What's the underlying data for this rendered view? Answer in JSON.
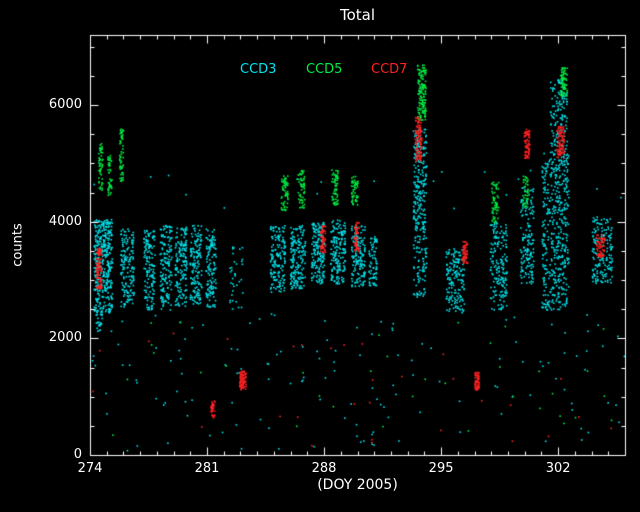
{
  "window": {
    "background": "#000000"
  },
  "chart_data": {
    "type": "scatter",
    "title": "Total",
    "xlabel": "(DOY 2005)",
    "ylabel": "counts",
    "xlim": [
      274,
      306
    ],
    "ylim": [
      0,
      7200
    ],
    "grid": false,
    "legend_position": "top-inside",
    "axis_color": "#ffffff",
    "background": "#000000",
    "xticks": {
      "major": [
        274,
        281,
        288,
        295,
        302
      ],
      "labels": [
        "274",
        "281",
        "288",
        "295",
        "302"
      ],
      "minor_interval": 1
    },
    "yticks": {
      "major": [
        0,
        2000,
        4000,
        6000
      ],
      "labels": [
        "0",
        "2000",
        "4000",
        "6000"
      ],
      "minor_interval": 500
    },
    "cluster_format": "each cluster is [x_center_day, x_half_spread, y_min_counts, y_max_counts, n_points]",
    "series": [
      {
        "name": "CCD3",
        "color": "#00e5ee",
        "clusters": [
          [
            274.75,
            0.55,
            2450,
            4050,
            380
          ],
          [
            274.5,
            0.2,
            2100,
            2500,
            25
          ],
          [
            276.2,
            0.4,
            2550,
            3900,
            150
          ],
          [
            277.5,
            0.35,
            2500,
            3900,
            140
          ],
          [
            278.5,
            0.35,
            2500,
            3950,
            150
          ],
          [
            279.4,
            0.35,
            2550,
            3950,
            150
          ],
          [
            280.3,
            0.35,
            2600,
            3950,
            150
          ],
          [
            281.2,
            0.3,
            2550,
            3900,
            130
          ],
          [
            282.7,
            0.4,
            2500,
            3600,
            35
          ],
          [
            285.2,
            0.45,
            2800,
            3950,
            160
          ],
          [
            286.4,
            0.45,
            2850,
            3950,
            170
          ],
          [
            287.6,
            0.4,
            2950,
            4000,
            160
          ],
          [
            288.8,
            0.45,
            2950,
            4050,
            170
          ],
          [
            290.0,
            0.4,
            2900,
            3950,
            150
          ],
          [
            290.9,
            0.25,
            2900,
            3800,
            70
          ],
          [
            293.7,
            0.4,
            3900,
            5600,
            200
          ],
          [
            293.7,
            0.4,
            2700,
            3900,
            90
          ],
          [
            295.8,
            0.55,
            2450,
            3550,
            160
          ],
          [
            298.4,
            0.5,
            2500,
            4000,
            170
          ],
          [
            300.1,
            0.4,
            2950,
            4600,
            150
          ],
          [
            301.8,
            0.8,
            2500,
            5200,
            450
          ],
          [
            302.0,
            0.5,
            5200,
            6450,
            130
          ],
          [
            304.6,
            0.6,
            2950,
            4100,
            160
          ],
          [
            290.0,
            16.0,
            80,
            2450,
            140
          ],
          [
            290.0,
            16.0,
            4100,
            4900,
            20
          ]
        ]
      },
      {
        "name": "CCD5",
        "color": "#00ee44",
        "clusters": [
          [
            274.6,
            0.12,
            4550,
            5350,
            55
          ],
          [
            275.15,
            0.12,
            4450,
            5150,
            45
          ],
          [
            275.85,
            0.12,
            4700,
            5600,
            55
          ],
          [
            285.6,
            0.2,
            4200,
            4800,
            60
          ],
          [
            286.6,
            0.2,
            4250,
            4900,
            60
          ],
          [
            288.6,
            0.2,
            4300,
            4900,
            60
          ],
          [
            289.8,
            0.2,
            4300,
            4800,
            55
          ],
          [
            293.8,
            0.25,
            5750,
            6700,
            150
          ],
          [
            298.2,
            0.2,
            4000,
            4700,
            65
          ],
          [
            300.0,
            0.15,
            4200,
            4800,
            40
          ],
          [
            302.3,
            0.2,
            6150,
            6650,
            75
          ],
          [
            290.0,
            16.0,
            300,
            2300,
            35
          ]
        ]
      },
      {
        "name": "CCD7",
        "color": "#ff2222",
        "clusters": [
          [
            274.5,
            0.16,
            2850,
            3550,
            100
          ],
          [
            281.3,
            0.12,
            650,
            950,
            35
          ],
          [
            283.1,
            0.2,
            1130,
            1450,
            80
          ],
          [
            287.9,
            0.15,
            3480,
            3950,
            60
          ],
          [
            289.9,
            0.15,
            3500,
            4000,
            60
          ],
          [
            293.6,
            0.2,
            5050,
            5800,
            110
          ],
          [
            296.4,
            0.15,
            3300,
            3680,
            55
          ],
          [
            297.1,
            0.13,
            1130,
            1430,
            60
          ],
          [
            300.1,
            0.16,
            5100,
            5600,
            70
          ],
          [
            302.1,
            0.22,
            5100,
            5650,
            90
          ],
          [
            304.5,
            0.25,
            3400,
            3800,
            70
          ],
          [
            290.0,
            16.0,
            150,
            2200,
            30
          ]
        ]
      }
    ]
  }
}
